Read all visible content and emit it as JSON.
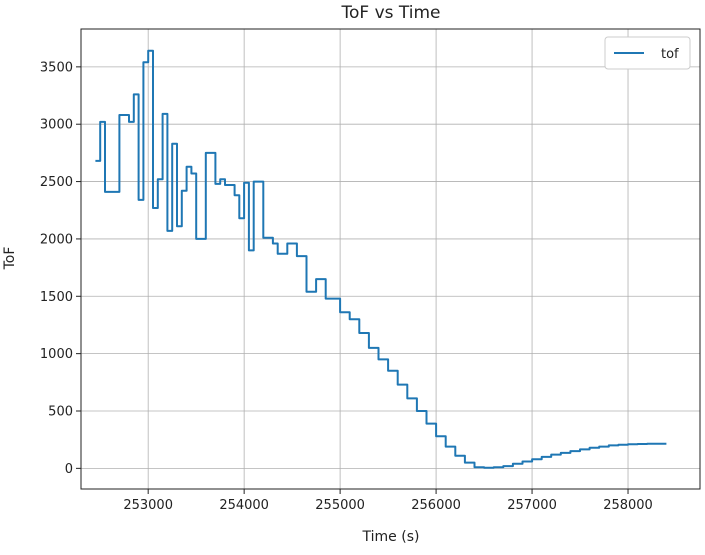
{
  "chart_data": {
    "type": "line",
    "title": "ToF vs Time",
    "xlabel": "Time (s)",
    "ylabel": "ToF",
    "xlim": [
      252300,
      258750
    ],
    "ylim": [
      -180,
      3830
    ],
    "xticks": [
      253000,
      254000,
      255000,
      256000,
      257000,
      258000
    ],
    "yticks": [
      0,
      500,
      1000,
      1500,
      2000,
      2500,
      3000,
      3500
    ],
    "grid": true,
    "legend_position": "top-right",
    "line_style": "steps",
    "series": [
      {
        "name": "tof",
        "color": "#1f77b4",
        "x": [
          252450,
          252500,
          252550,
          252600,
          252700,
          252800,
          252850,
          252900,
          252950,
          253000,
          253050,
          253100,
          253150,
          253200,
          253250,
          253300,
          253350,
          253400,
          253450,
          253500,
          253600,
          253700,
          253750,
          253800,
          253900,
          253950,
          254000,
          254050,
          254100,
          254150,
          254200,
          254300,
          254350,
          254450,
          254550,
          254650,
          254700,
          254750,
          254850,
          254950,
          255000,
          255100,
          255200,
          255300,
          255400,
          255500,
          255600,
          255700,
          255800,
          255900,
          256000,
          256100,
          256200,
          256300,
          256400,
          256500,
          256600,
          256700,
          256800,
          256900,
          257000,
          257100,
          257200,
          257300,
          257400,
          257500,
          257600,
          257700,
          257800,
          257900,
          258000,
          258100,
          258200,
          258300,
          258400
        ],
        "y": [
          2680,
          3020,
          2410,
          2410,
          3080,
          3020,
          3260,
          2340,
          3540,
          3640,
          2270,
          2520,
          3090,
          2070,
          2830,
          2110,
          2420,
          2630,
          2570,
          2000,
          2750,
          2480,
          2520,
          2470,
          2380,
          2180,
          2490,
          1900,
          2500,
          2500,
          2010,
          1960,
          1870,
          1960,
          1850,
          1540,
          1540,
          1650,
          1480,
          1480,
          1360,
          1300,
          1180,
          1050,
          950,
          850,
          730,
          610,
          500,
          390,
          280,
          190,
          110,
          50,
          10,
          5,
          10,
          20,
          40,
          60,
          80,
          100,
          120,
          135,
          150,
          165,
          180,
          190,
          200,
          205,
          210,
          212,
          214,
          215,
          215
        ]
      }
    ]
  }
}
